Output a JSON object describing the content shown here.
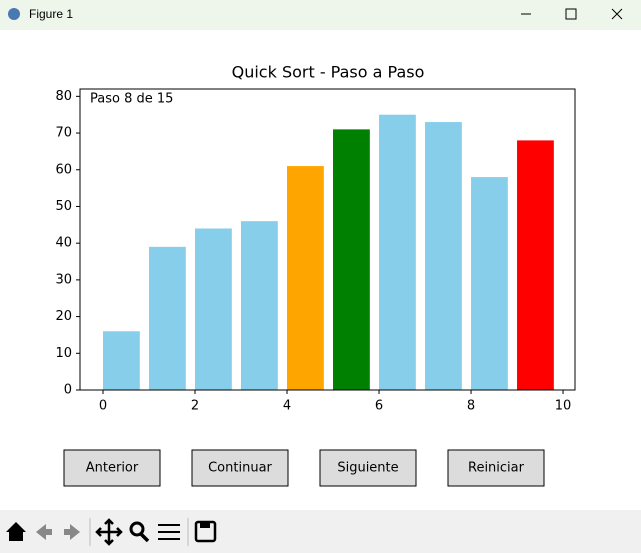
{
  "window": {
    "title": "Figure 1"
  },
  "chart_data": {
    "type": "bar",
    "title": "Quick Sort - Paso a Paso",
    "annotation": "Paso 8 de 15",
    "x": [
      0,
      1,
      2,
      3,
      4,
      5,
      6,
      7,
      8,
      9
    ],
    "values": [
      16,
      39,
      44,
      46,
      61,
      71,
      75,
      73,
      58,
      68
    ],
    "colors": [
      "#87ceeb",
      "#87ceeb",
      "#87ceeb",
      "#87ceeb",
      "#ffa500",
      "#008000",
      "#87ceeb",
      "#87ceeb",
      "#87ceeb",
      "#ff0000"
    ],
    "bar_width": 0.8,
    "bar_align": "edge",
    "xlim": [
      -0.5,
      10.26
    ],
    "xticks": [
      0,
      2,
      4,
      6,
      8,
      10
    ],
    "ylim": [
      0,
      82
    ],
    "yticks": [
      0,
      10,
      20,
      30,
      40,
      50,
      60,
      70,
      80
    ],
    "grid": false
  },
  "buttons": [
    "Anterior",
    "Continuar",
    "Siguiente",
    "Reiniciar"
  ]
}
